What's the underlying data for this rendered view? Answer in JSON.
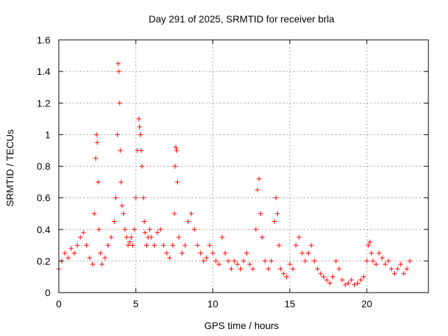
{
  "chart_data": {
    "type": "scatter",
    "title": "Day 291 of 2025, SRMTID for receiver brla",
    "xlabel": "GPS time / hours",
    "ylabel": "SRMTID / TECUs",
    "xlim": [
      0,
      24
    ],
    "ylim": [
      0,
      1.6
    ],
    "xticks": [
      0,
      5,
      10,
      15,
      20
    ],
    "xtick_labels": [
      "0",
      "5",
      "10",
      "15",
      "20"
    ],
    "yticks": [
      0,
      0.2,
      0.4,
      0.6,
      0.8,
      1.0,
      1.2,
      1.4,
      1.6
    ],
    "ytick_labels": [
      "0",
      "0.2",
      "0.4",
      "0.6",
      "0.8",
      "1",
      "1.2",
      "1.4",
      "1.6"
    ],
    "grid": true,
    "marker": "+",
    "color": "#ff0000",
    "series": [
      {
        "name": "SRMTID",
        "x": [
          0.0,
          0.2,
          0.4,
          0.6,
          0.8,
          1.0,
          1.2,
          1.4,
          1.6,
          1.8,
          2.0,
          2.2,
          2.3,
          2.4,
          2.45,
          2.5,
          2.55,
          2.6,
          2.7,
          2.8,
          3.0,
          3.2,
          3.4,
          3.6,
          3.7,
          3.8,
          3.85,
          3.9,
          3.95,
          4.0,
          4.05,
          4.1,
          4.2,
          4.3,
          4.4,
          4.5,
          4.6,
          4.7,
          4.8,
          4.9,
          5.0,
          5.1,
          5.2,
          5.25,
          5.3,
          5.35,
          5.4,
          5.5,
          5.55,
          5.6,
          5.7,
          5.8,
          5.9,
          6.0,
          6.2,
          6.4,
          6.6,
          6.8,
          7.0,
          7.2,
          7.4,
          7.5,
          7.55,
          7.6,
          7.65,
          7.7,
          7.8,
          8.0,
          8.2,
          8.4,
          8.6,
          8.8,
          9.0,
          9.2,
          9.4,
          9.6,
          9.8,
          10.0,
          10.2,
          10.4,
          10.6,
          10.8,
          11.0,
          11.2,
          11.4,
          11.6,
          11.8,
          12.0,
          12.2,
          12.4,
          12.6,
          12.8,
          12.9,
          13.0,
          13.1,
          13.2,
          13.4,
          13.6,
          13.8,
          14.0,
          14.1,
          14.2,
          14.3,
          14.4,
          14.6,
          14.8,
          15.0,
          15.2,
          15.4,
          15.6,
          15.8,
          16.0,
          16.2,
          16.4,
          16.6,
          16.8,
          17.0,
          17.2,
          17.4,
          17.6,
          17.8,
          18.0,
          18.2,
          18.4,
          18.6,
          18.8,
          19.0,
          19.2,
          19.4,
          19.6,
          19.8,
          20.0,
          20.1,
          20.2,
          20.3,
          20.4,
          20.6,
          20.8,
          21.0,
          21.2,
          21.4,
          21.6,
          21.8,
          22.0,
          22.2,
          22.4,
          22.6,
          22.8
        ],
        "y": [
          0.15,
          0.2,
          0.25,
          0.22,
          0.28,
          0.25,
          0.3,
          0.35,
          0.38,
          0.3,
          0.22,
          0.18,
          0.5,
          0.85,
          1.0,
          0.95,
          0.7,
          0.4,
          0.25,
          0.18,
          0.22,
          0.3,
          0.35,
          0.45,
          0.6,
          1.0,
          1.45,
          1.4,
          1.2,
          0.9,
          0.7,
          0.55,
          0.5,
          0.4,
          0.35,
          0.3,
          0.32,
          0.35,
          0.3,
          0.4,
          0.6,
          0.9,
          1.1,
          1.05,
          1.0,
          0.9,
          0.8,
          0.6,
          0.45,
          0.38,
          0.3,
          0.35,
          0.4,
          0.35,
          0.3,
          0.38,
          0.4,
          0.3,
          0.25,
          0.22,
          0.3,
          0.5,
          0.8,
          0.92,
          0.9,
          0.7,
          0.35,
          0.25,
          0.3,
          0.45,
          0.5,
          0.4,
          0.3,
          0.25,
          0.2,
          0.22,
          0.3,
          0.25,
          0.2,
          0.18,
          0.35,
          0.25,
          0.2,
          0.15,
          0.2,
          0.18,
          0.15,
          0.2,
          0.25,
          0.18,
          0.15,
          0.4,
          0.65,
          0.72,
          0.5,
          0.35,
          0.2,
          0.15,
          0.2,
          0.45,
          0.6,
          0.5,
          0.3,
          0.15,
          0.12,
          0.1,
          0.18,
          0.15,
          0.3,
          0.35,
          0.25,
          0.2,
          0.25,
          0.3,
          0.2,
          0.15,
          0.12,
          0.1,
          0.08,
          0.06,
          0.1,
          0.2,
          0.15,
          0.08,
          0.05,
          0.06,
          0.08,
          0.05,
          0.06,
          0.08,
          0.1,
          0.2,
          0.3,
          0.32,
          0.25,
          0.2,
          0.18,
          0.25,
          0.22,
          0.18,
          0.2,
          0.15,
          0.12,
          0.15,
          0.18,
          0.12,
          0.15,
          0.2
        ]
      }
    ]
  }
}
